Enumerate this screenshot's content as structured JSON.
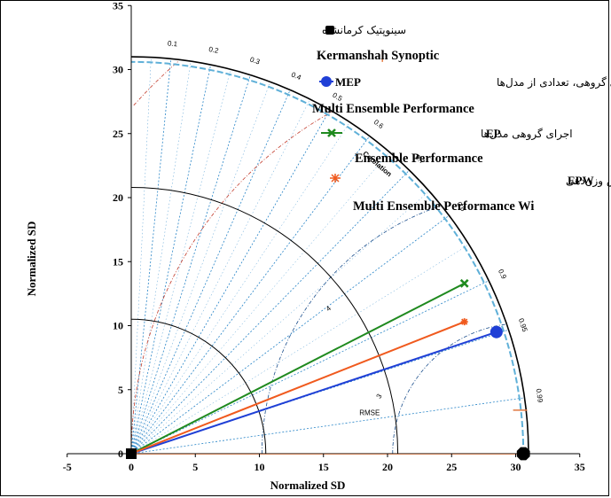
{
  "chart_data": {
    "type": "taylor_diagram",
    "xlabel": "Normalized SD",
    "ylabel": "Normalized SD",
    "xlim": [
      -5,
      35
    ],
    "ylim": [
      0,
      35
    ],
    "x_ticks": [
      -5,
      0,
      5,
      10,
      15,
      20,
      25,
      30,
      35
    ],
    "y_ticks": [
      0,
      5,
      10,
      15,
      20,
      25,
      30,
      35
    ],
    "reference_sd": 30.6,
    "sd_arcs": [
      10.5,
      20.8,
      31.0
    ],
    "correlation_label": "Corelation",
    "correlation_ticks": [
      {
        "value": 0.1,
        "label": "0.1"
      },
      {
        "value": 0.2,
        "label": "0.2"
      },
      {
        "value": 0.3,
        "label": "0.3"
      },
      {
        "value": 0.4,
        "label": "0.4"
      },
      {
        "value": 0.5,
        "label": "0.5"
      },
      {
        "value": 0.6,
        "label": "0.6"
      },
      {
        "value": 0.7,
        "label": "0.7"
      },
      {
        "value": 0.8,
        "label": "0.8"
      },
      {
        "value": 0.9,
        "label": "0.9"
      },
      {
        "value": 0.95,
        "label": "0.95"
      },
      {
        "value": 0.99,
        "label": "0.99"
      }
    ],
    "rmse_label": "RMSE",
    "rmse_arcs": [
      {
        "value": 1,
        "label": ""
      },
      {
        "value": 2,
        "label": ""
      },
      {
        "value": 3,
        "label": "3"
      },
      {
        "value": 4,
        "label": "4"
      }
    ],
    "series": [
      {
        "name": "Kermanshah Synoptic",
        "name_fa": "سینوپتیک کرمانشاه",
        "tag": "",
        "x": 30.6,
        "y": 0,
        "color": "#000000",
        "marker": "octagon"
      },
      {
        "name": "Multi Ensemble Performance",
        "name_fa": "اجرای گروهی، تعدادی از مدل‌ها",
        "tag": "MEP",
        "x": 28.5,
        "y": 9.5,
        "color": "#1f3fd6",
        "marker": "circle"
      },
      {
        "name": "Ensemble Performance",
        "name_fa": "اجرای گروهی مدل‌ها",
        "tag": "EP",
        "x": 26.0,
        "y": 13.3,
        "color": "#1f8a1f",
        "marker": "x"
      },
      {
        "name": "Multi Ensemble Performance Wi",
        "name_fa": "اجرای گروهی مدل‌ها با روش وزن‌دهی",
        "tag": "EPW",
        "x": 26.0,
        "y": 10.3,
        "color": "#f05a1e",
        "marker": "star"
      }
    ],
    "origin_marker": {
      "x": 0,
      "y": 0,
      "color": "#000000"
    }
  }
}
